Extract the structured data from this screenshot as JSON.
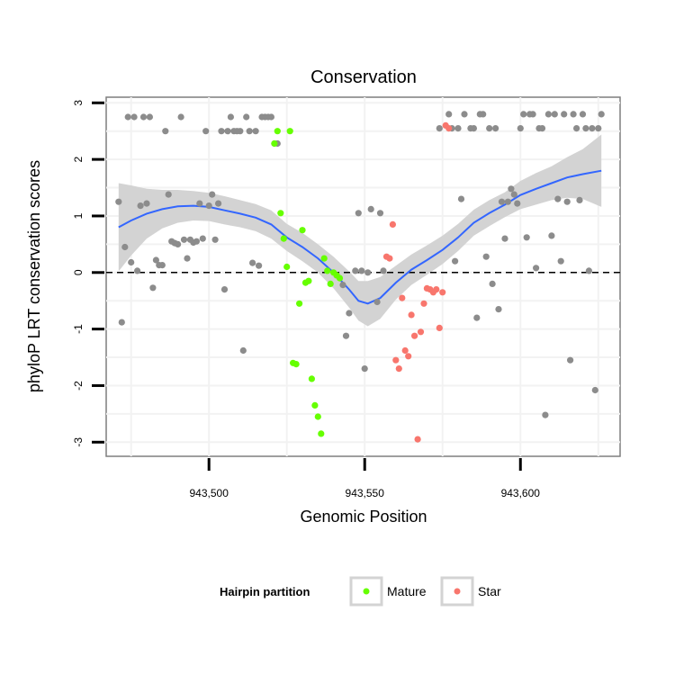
{
  "chart_data": {
    "type": "scatter",
    "title": "Conservation",
    "xlabel": "Genomic Position",
    "ylabel": "phyloP LRT conservation scores",
    "xlim": [
      943467,
      943632
    ],
    "ylim": [
      -3.25,
      3.1
    ],
    "x_ticks": [
      943500,
      943550,
      943600
    ],
    "x_tick_labels": [
      "943,500",
      "943,550",
      "943,600"
    ],
    "y_ticks": [
      -3,
      -2,
      -1,
      0,
      1,
      2,
      3
    ],
    "y_tick_labels": [
      "-3",
      "-2",
      "-1",
      "0",
      "1",
      "2",
      "3"
    ],
    "grid": true,
    "reference_line": {
      "y": 0,
      "style": "dashed"
    },
    "colors": {
      "other": "#8c8c8c",
      "Mature": "#66ff00",
      "Star": "#f8766d",
      "smooth": "#3366ff",
      "ribbon": "#d3d3d3",
      "panel_border": "#7f7f7f"
    },
    "legend": {
      "title": "Hairpin partition",
      "position": "bottom",
      "entries": [
        {
          "label": "Mature",
          "color": "#66ff00"
        },
        {
          "label": "Star",
          "color": "#f8766d"
        }
      ]
    },
    "series": [
      {
        "name": "Other",
        "points": [
          [
            943471,
            1.25
          ],
          [
            943472,
            -0.88
          ],
          [
            943473,
            0.45
          ],
          [
            943474,
            2.75
          ],
          [
            943475,
            0.18
          ],
          [
            943476,
            2.75
          ],
          [
            943477,
            0.03
          ],
          [
            943478,
            1.18
          ],
          [
            943479,
            2.75
          ],
          [
            943480,
            1.22
          ],
          [
            943481,
            2.75
          ],
          [
            943482,
            -0.27
          ],
          [
            943483,
            0.22
          ],
          [
            943484,
            0.13
          ],
          [
            943485,
            0.13
          ],
          [
            943486,
            2.5
          ],
          [
            943487,
            1.38
          ],
          [
            943488,
            0.55
          ],
          [
            943489,
            0.52
          ],
          [
            943490,
            0.5
          ],
          [
            943491,
            2.75
          ],
          [
            943492,
            0.58
          ],
          [
            943493,
            0.25
          ],
          [
            943494,
            0.58
          ],
          [
            943495,
            0.53
          ],
          [
            943496,
            0.55
          ],
          [
            943497,
            1.22
          ],
          [
            943498,
            0.6
          ],
          [
            943499,
            2.5
          ],
          [
            943500,
            1.18
          ],
          [
            943501,
            1.38
          ],
          [
            943502,
            0.58
          ],
          [
            943503,
            1.22
          ],
          [
            943504,
            2.5
          ],
          [
            943505,
            -0.3
          ],
          [
            943506,
            2.5
          ],
          [
            943507,
            2.75
          ],
          [
            943508,
            2.5
          ],
          [
            943509,
            2.5
          ],
          [
            943510,
            2.5
          ],
          [
            943511,
            -1.38
          ],
          [
            943512,
            2.75
          ],
          [
            943513,
            2.5
          ],
          [
            943514,
            0.17
          ],
          [
            943515,
            2.5
          ],
          [
            943516,
            0.12
          ],
          [
            943517,
            2.75
          ],
          [
            943518,
            2.75
          ],
          [
            943519,
            2.75
          ],
          [
            943520,
            2.75
          ],
          [
            943521,
            2.28
          ],
          [
            943522,
            2.28
          ],
          [
            943541,
            -0.05
          ],
          [
            943543,
            -0.22
          ],
          [
            943544,
            -1.12
          ],
          [
            943545,
            -0.72
          ],
          [
            943547,
            0.03
          ],
          [
            943548,
            1.05
          ],
          [
            943549,
            0.03
          ],
          [
            943550,
            -1.7
          ],
          [
            943551,
            0.0
          ],
          [
            943552,
            1.12
          ],
          [
            943554,
            -0.52
          ],
          [
            943555,
            1.05
          ],
          [
            943556,
            0.03
          ],
          [
            943574,
            2.55
          ],
          [
            943577,
            2.8
          ],
          [
            943578,
            2.55
          ],
          [
            943579,
            0.2
          ],
          [
            943580,
            2.55
          ],
          [
            943581,
            1.3
          ],
          [
            943582,
            2.8
          ],
          [
            943584,
            2.55
          ],
          [
            943585,
            2.55
          ],
          [
            943586,
            -0.8
          ],
          [
            943587,
            2.8
          ],
          [
            943588,
            2.8
          ],
          [
            943589,
            0.28
          ],
          [
            943590,
            2.55
          ],
          [
            943591,
            -0.2
          ],
          [
            943592,
            2.55
          ],
          [
            943593,
            -0.65
          ],
          [
            943594,
            1.25
          ],
          [
            943595,
            0.6
          ],
          [
            943596,
            1.25
          ],
          [
            943597,
            1.48
          ],
          [
            943598,
            1.38
          ],
          [
            943599,
            1.22
          ],
          [
            943600,
            2.55
          ],
          [
            943601,
            2.8
          ],
          [
            943602,
            0.62
          ],
          [
            943603,
            2.8
          ],
          [
            943604,
            2.8
          ],
          [
            943605,
            0.08
          ],
          [
            943606,
            2.55
          ],
          [
            943607,
            2.55
          ],
          [
            943608,
            -2.52
          ],
          [
            943609,
            2.8
          ],
          [
            943610,
            0.65
          ],
          [
            943611,
            2.8
          ],
          [
            943612,
            1.3
          ],
          [
            943613,
            0.2
          ],
          [
            943614,
            2.8
          ],
          [
            943615,
            1.25
          ],
          [
            943616,
            -1.55
          ],
          [
            943617,
            2.8
          ],
          [
            943618,
            2.55
          ],
          [
            943619,
            1.28
          ],
          [
            943620,
            2.8
          ],
          [
            943621,
            2.55
          ],
          [
            943622,
            0.03
          ],
          [
            943623,
            2.55
          ],
          [
            943624,
            -2.08
          ],
          [
            943625,
            2.55
          ],
          [
            943626,
            2.8
          ]
        ]
      },
      {
        "name": "Mature",
        "points": [
          [
            943521,
            2.28
          ],
          [
            943522,
            2.5
          ],
          [
            943523,
            1.05
          ],
          [
            943524,
            0.6
          ],
          [
            943525,
            0.1
          ],
          [
            943526,
            2.5
          ],
          [
            943527,
            -1.6
          ],
          [
            943528,
            -1.62
          ],
          [
            943529,
            -0.55
          ],
          [
            943530,
            0.75
          ],
          [
            943531,
            -0.18
          ],
          [
            943532,
            -0.15
          ],
          [
            943533,
            -1.88
          ],
          [
            943534,
            -2.35
          ],
          [
            943535,
            -2.55
          ],
          [
            943536,
            -2.85
          ],
          [
            943537,
            0.25
          ],
          [
            943538,
            0.03
          ],
          [
            943539,
            -0.2
          ],
          [
            943540,
            0.0
          ],
          [
            943541,
            -0.05
          ],
          [
            943542,
            -0.1
          ]
        ]
      },
      {
        "name": "Star",
        "points": [
          [
            943557,
            0.28
          ],
          [
            943558,
            0.25
          ],
          [
            943559,
            0.85
          ],
          [
            943560,
            -1.55
          ],
          [
            943561,
            -1.7
          ],
          [
            943562,
            -0.45
          ],
          [
            943563,
            -1.38
          ],
          [
            943564,
            -1.48
          ],
          [
            943565,
            -0.75
          ],
          [
            943566,
            -1.12
          ],
          [
            943567,
            -2.95
          ],
          [
            943568,
            -1.05
          ],
          [
            943569,
            -0.55
          ],
          [
            943570,
            -0.28
          ],
          [
            943571,
            -0.3
          ],
          [
            943572,
            -0.35
          ],
          [
            943573,
            -0.3
          ],
          [
            943574,
            -0.98
          ],
          [
            943575,
            -0.35
          ],
          [
            943576,
            2.6
          ],
          [
            943577,
            2.55
          ]
        ]
      }
    ],
    "smooth": {
      "x": [
        943471,
        943475,
        943480,
        943485,
        943490,
        943495,
        943500,
        943505,
        943510,
        943515,
        943520,
        943525,
        943530,
        943535,
        943540,
        943545,
        943548,
        943551,
        943555,
        943560,
        943565,
        943570,
        943575,
        943580,
        943585,
        943590,
        943595,
        943600,
        943605,
        943610,
        943615,
        943620,
        943626
      ],
      "y": [
        0.8,
        0.92,
        1.04,
        1.12,
        1.17,
        1.18,
        1.16,
        1.1,
        1.04,
        0.97,
        0.85,
        0.62,
        0.45,
        0.25,
        0.0,
        -0.3,
        -0.5,
        -0.55,
        -0.45,
        -0.18,
        0.05,
        0.22,
        0.4,
        0.62,
        0.88,
        1.05,
        1.2,
        1.37,
        1.48,
        1.58,
        1.68,
        1.74,
        1.8
      ],
      "lower": [
        0.02,
        0.3,
        0.6,
        0.78,
        0.88,
        0.92,
        0.91,
        0.85,
        0.8,
        0.73,
        0.6,
        0.38,
        0.2,
        0.0,
        -0.28,
        -0.62,
        -0.85,
        -0.95,
        -0.82,
        -0.48,
        -0.22,
        -0.04,
        0.15,
        0.38,
        0.65,
        0.82,
        0.98,
        1.12,
        1.2,
        1.28,
        1.32,
        1.3,
        1.16
      ],
      "upper": [
        1.58,
        1.54,
        1.48,
        1.46,
        1.46,
        1.44,
        1.41,
        1.35,
        1.28,
        1.21,
        1.1,
        0.86,
        0.7,
        0.5,
        0.28,
        0.02,
        -0.15,
        -0.15,
        -0.08,
        0.12,
        0.32,
        0.48,
        0.65,
        0.86,
        1.11,
        1.28,
        1.42,
        1.62,
        1.76,
        1.88,
        2.04,
        2.18,
        2.44
      ]
    }
  }
}
